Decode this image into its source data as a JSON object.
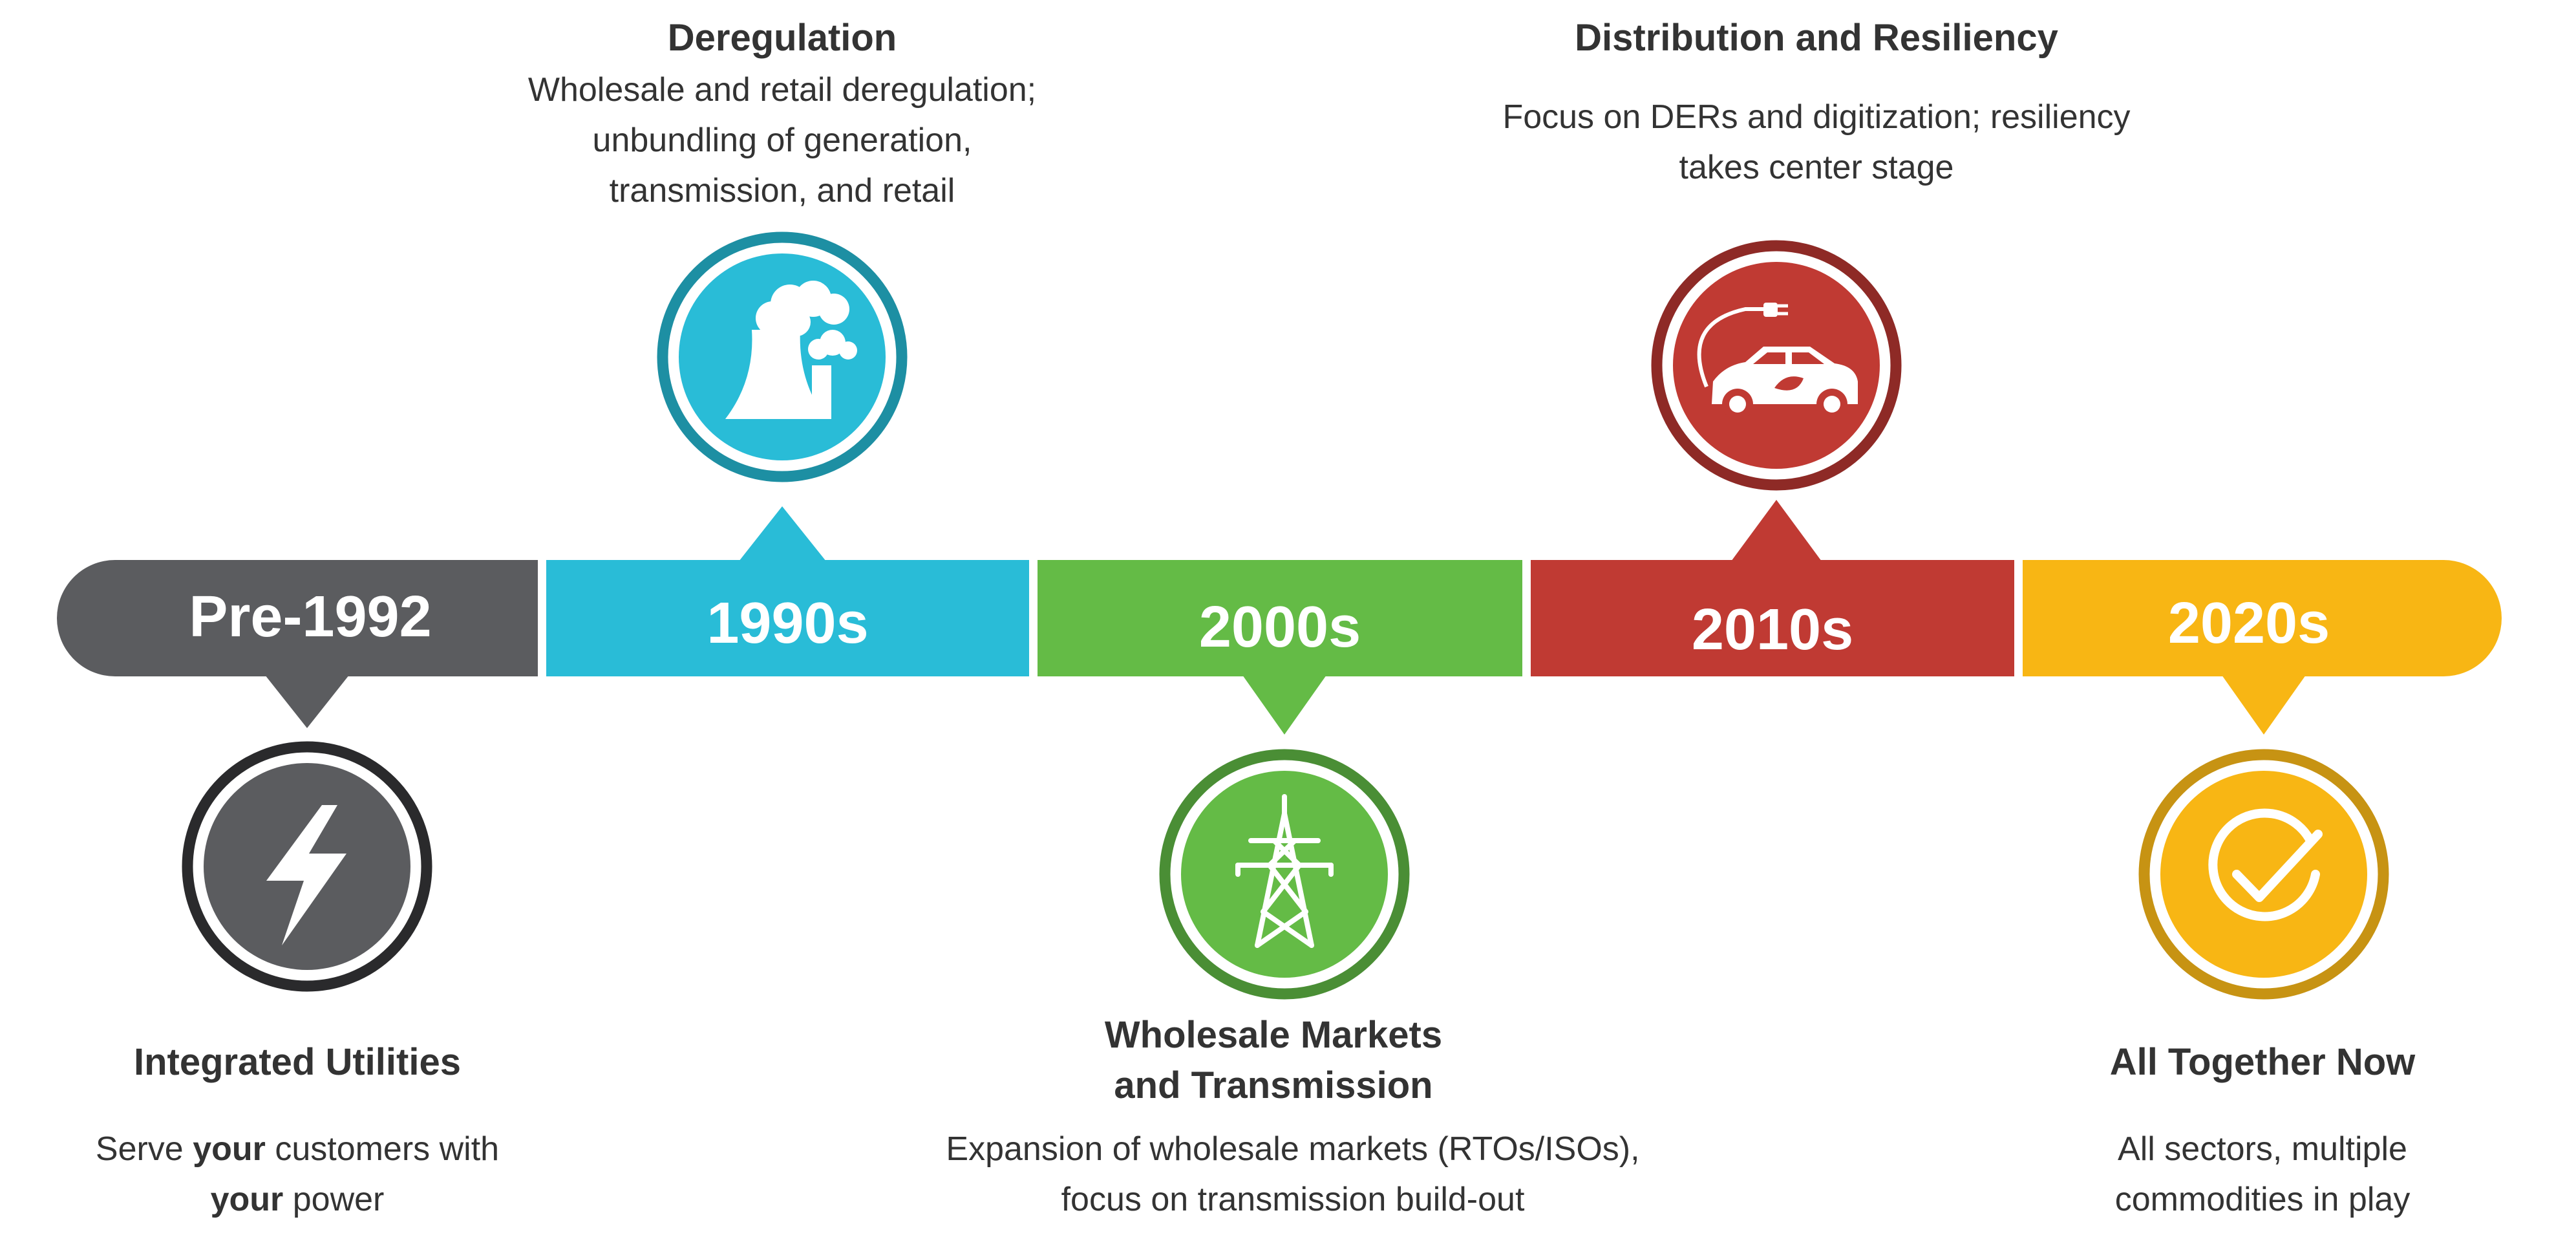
{
  "colors": {
    "pre1992": "#5b5c5f",
    "y1990s": "#29bcd7",
    "y2000s": "#64bb46",
    "y2010s": "#c03a33",
    "y2020s": "#f8b614",
    "ring_pre1992": "#2a2a2c",
    "ring_1990s": "#1d8fa3",
    "ring_2000s": "#4a8e35",
    "ring_2010s": "#8e2a26",
    "ring_2020s": "#c79313",
    "text": "#333333"
  },
  "eras": [
    {
      "label": "Pre-1992",
      "color_key": "pre1992",
      "icon": "lightning-bolt-icon"
    },
    {
      "label": "1990s",
      "color_key": "y1990s",
      "icon": "power-plant-icon"
    },
    {
      "label": "2000s",
      "color_key": "y2000s",
      "icon": "transmission-tower-icon"
    },
    {
      "label": "2010s",
      "color_key": "y2010s",
      "icon": "electric-car-icon"
    },
    {
      "label": "2020s",
      "color_key": "y2020s",
      "icon": "checkmark-icon"
    }
  ],
  "milestones": {
    "pre1992": {
      "title": "Integrated Utilities",
      "desc_part1": "Serve ",
      "desc_bold1": "your",
      "desc_part2": " customers with",
      "desc_bold2": "your",
      "desc_part3": " power"
    },
    "y1990s": {
      "title": "Deregulation",
      "lines": [
        "Wholesale and retail deregulation;",
        "unbundling of generation,",
        "transmission, and retail"
      ]
    },
    "y2000s": {
      "title_lines": [
        "Wholesale Markets",
        "and Transmission"
      ],
      "lines": [
        "Expansion of wholesale markets (RTOs/ISOs),",
        "focus on transmission build-out"
      ]
    },
    "y2010s": {
      "title": "Distribution and Resiliency",
      "lines": [
        "Focus on DERs and digitization; resiliency",
        "takes center stage"
      ]
    },
    "y2020s": {
      "title": "All Together Now",
      "lines": [
        "All sectors, multiple",
        "commodities in play"
      ]
    }
  }
}
